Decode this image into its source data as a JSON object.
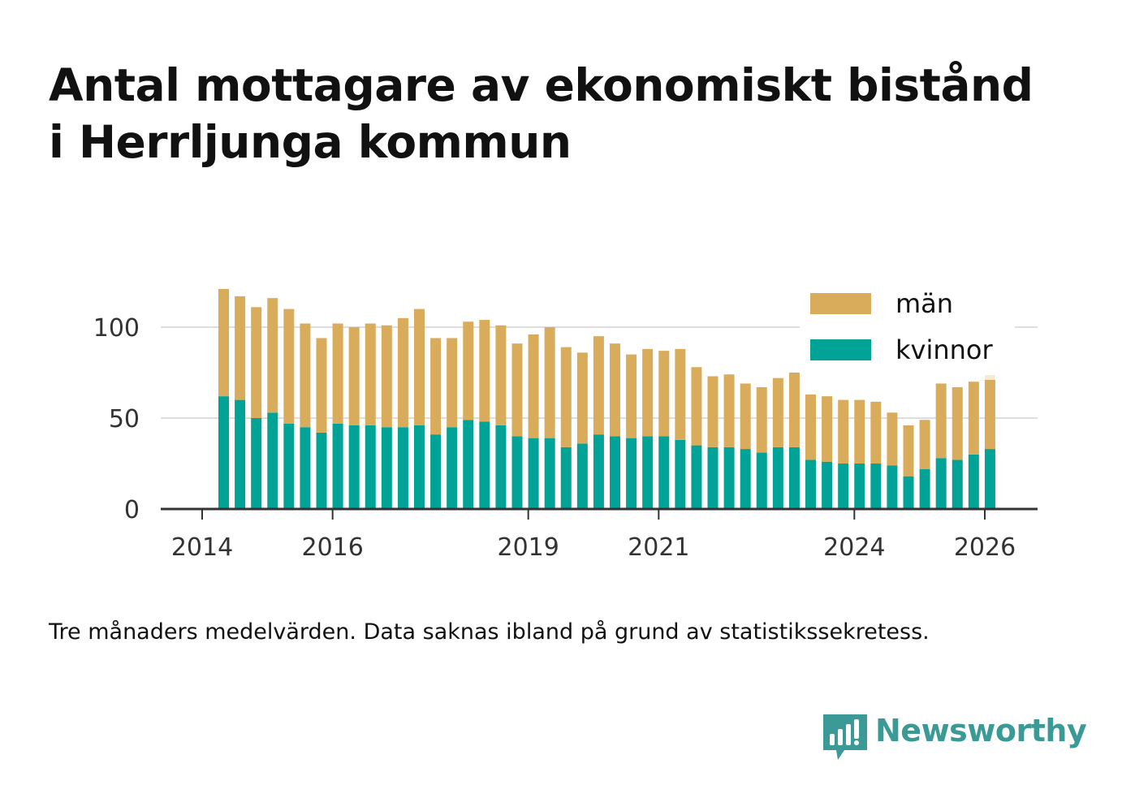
{
  "title_lines": [
    "Antal mottagare av ekonomiskt bistånd",
    "i Herrljunga kommun"
  ],
  "footnote": "Tre månaders medelvärden. Data saknas ibland på grund av statistikssekretess.",
  "brand": {
    "name": "Newsworthy",
    "icon": "newsworthy-logo-icon",
    "color": "#3b9a95"
  },
  "colors": {
    "men": "#d9ac5c",
    "women": "#00a396",
    "men_preliminary": "#f6ead7",
    "grid": "#dddddd",
    "axis": "#333333"
  },
  "chart_data": {
    "type": "bar",
    "stacked": true,
    "title": "Antal mottagare av ekonomiskt bistånd i Herrljunga kommun",
    "xlabel": "",
    "ylabel": "",
    "ylim": [
      0,
      125
    ],
    "yticks": [
      0,
      50,
      100
    ],
    "x_range": [
      2014.0,
      2027.3
    ],
    "xticks": [
      "2014",
      "2016",
      "2019",
      "2021",
      "2024",
      "2026"
    ],
    "legend": {
      "position": "top-right",
      "entries": [
        "män",
        "kvinnor"
      ]
    },
    "bar_dates": [
      2014.33,
      2014.58,
      2014.83,
      2015.08,
      2015.33,
      2015.58,
      2015.83,
      2016.08,
      2016.33,
      2016.58,
      2016.83,
      2017.08,
      2017.33,
      2017.58,
      2017.83,
      2018.08,
      2018.33,
      2018.58,
      2018.83,
      2019.08,
      2019.33,
      2019.58,
      2019.83,
      2020.08,
      2020.33,
      2020.58,
      2020.83,
      2021.08,
      2021.33,
      2021.58,
      2021.83,
      2022.08,
      2022.33,
      2022.58,
      2022.83,
      2023.08,
      2023.33,
      2023.58,
      2023.83,
      2024.08,
      2024.33,
      2024.58,
      2024.83,
      2025.08,
      2025.33,
      2025.58,
      2025.83,
      2026.08
    ],
    "series": [
      {
        "name": "kvinnor",
        "values": [
          62,
          60,
          50,
          53,
          47,
          45,
          42,
          47,
          46,
          46,
          45,
          45,
          46,
          41,
          45,
          49,
          48,
          46,
          40,
          39,
          39,
          34,
          36,
          41,
          40,
          39,
          40,
          40,
          38,
          35,
          34,
          34,
          33,
          31,
          34,
          34,
          27,
          26,
          25,
          25,
          25,
          24,
          18,
          22,
          28,
          27,
          30,
          33
        ]
      },
      {
        "name": "män",
        "values": [
          59,
          57,
          61,
          63,
          63,
          57,
          52,
          55,
          54,
          56,
          56,
          60,
          64,
          53,
          49,
          54,
          56,
          55,
          51,
          57,
          61,
          55,
          50,
          54,
          51,
          46,
          48,
          47,
          50,
          43,
          39,
          40,
          36,
          36,
          38,
          41,
          36,
          36,
          35,
          35,
          34,
          29,
          28,
          27,
          41,
          40,
          40,
          38
        ]
      }
    ],
    "preliminary_total": 77
  }
}
